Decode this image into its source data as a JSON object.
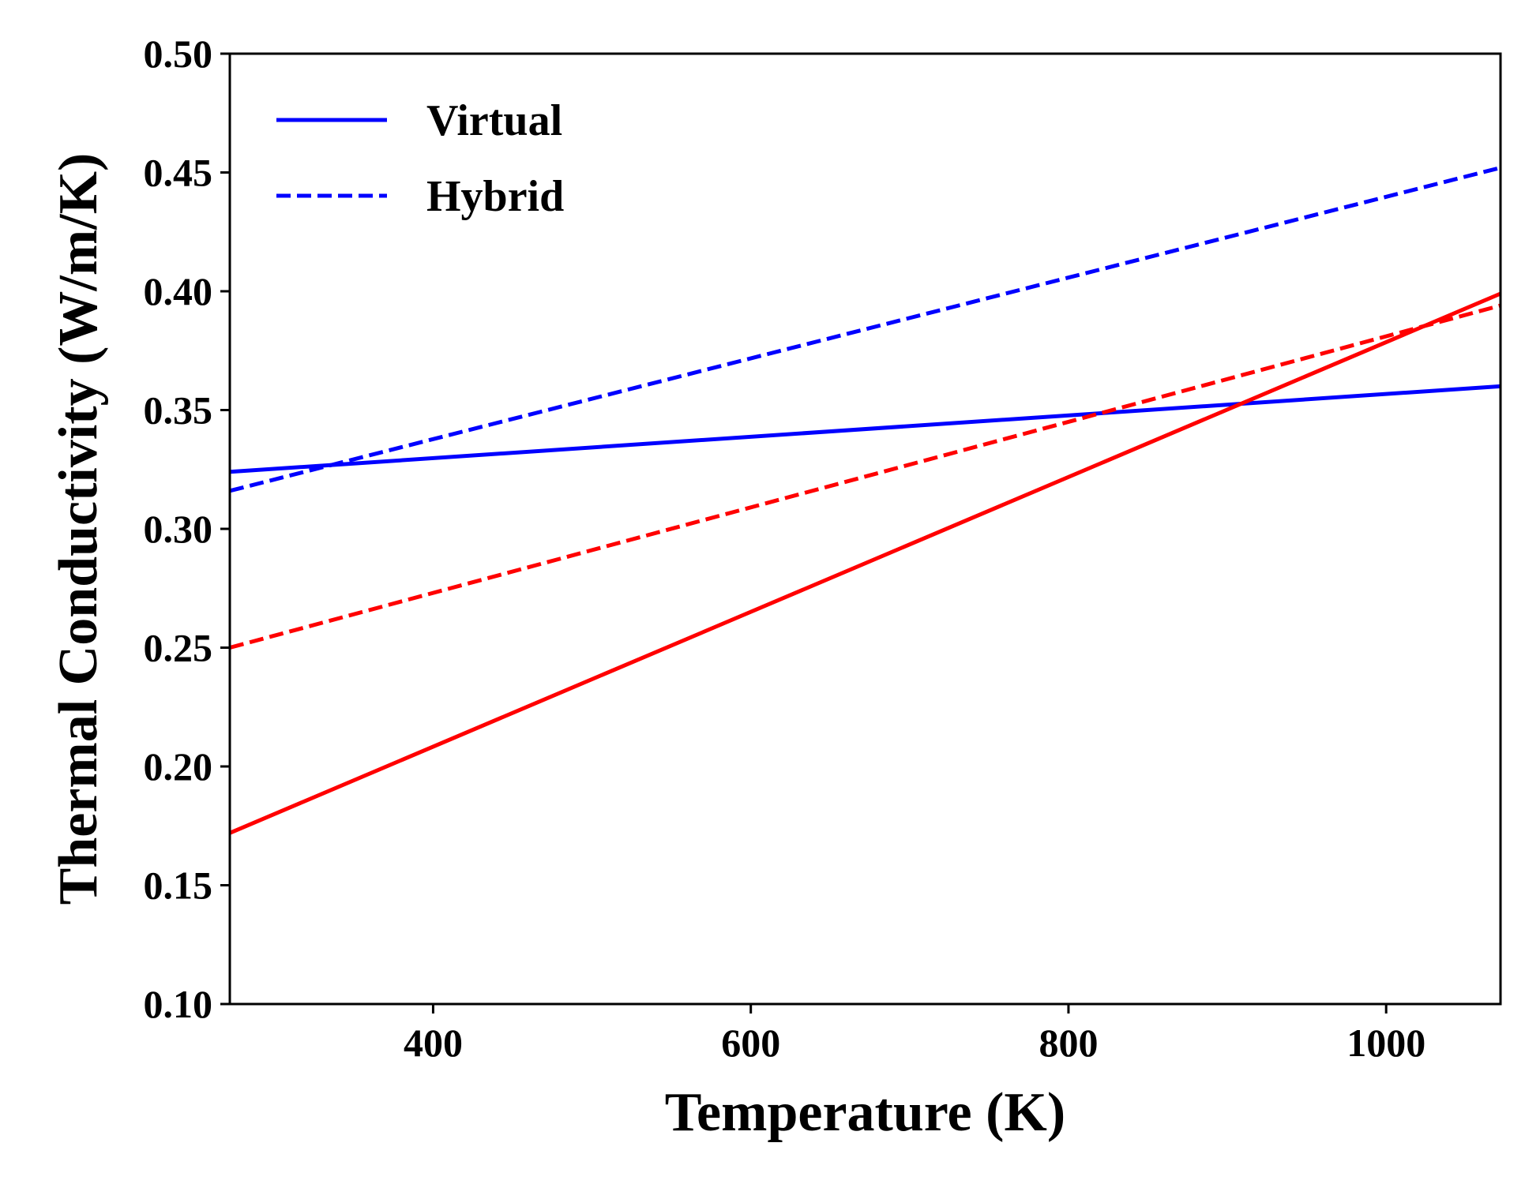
{
  "chart_data": {
    "type": "line",
    "xlabel": "Temperature (K)",
    "ylabel": "Thermal Conductivity (W/m/K)",
    "xlim": [
      272,
      1072
    ],
    "ylim": [
      0.1,
      0.5
    ],
    "x_ticks": [
      400,
      600,
      800,
      1000
    ],
    "x_tick_labels": [
      "400",
      "600",
      "800",
      "1000"
    ],
    "y_ticks": [
      0.1,
      0.15,
      0.2,
      0.25,
      0.3,
      0.35,
      0.4,
      0.45,
      0.5
    ],
    "y_tick_labels": [
      "0.10",
      "0.15",
      "0.20",
      "0.25",
      "0.30",
      "0.35",
      "0.40",
      "0.45",
      "0.50"
    ],
    "grid": false,
    "legend_position": "top-left",
    "legend": [
      {
        "label": "Virtual",
        "style": "solid",
        "color": "#0000ff"
      },
      {
        "label": "Hybrid",
        "style": "dashed",
        "color": "#0000ff"
      }
    ],
    "series": [
      {
        "style": "solid",
        "color": "#0000ff",
        "x": [
          272,
          1072
        ],
        "y": [
          0.324,
          0.36
        ]
      },
      {
        "style": "dashed",
        "color": "#0000ff",
        "x": [
          272,
          1072
        ],
        "y": [
          0.316,
          0.452
        ]
      },
      {
        "style": "solid",
        "color": "#ff0000",
        "x": [
          272,
          1072
        ],
        "y": [
          0.172,
          0.399
        ]
      },
      {
        "style": "dashed",
        "color": "#ff0000",
        "x": [
          272,
          1072
        ],
        "y": [
          0.25,
          0.394
        ]
      }
    ]
  }
}
